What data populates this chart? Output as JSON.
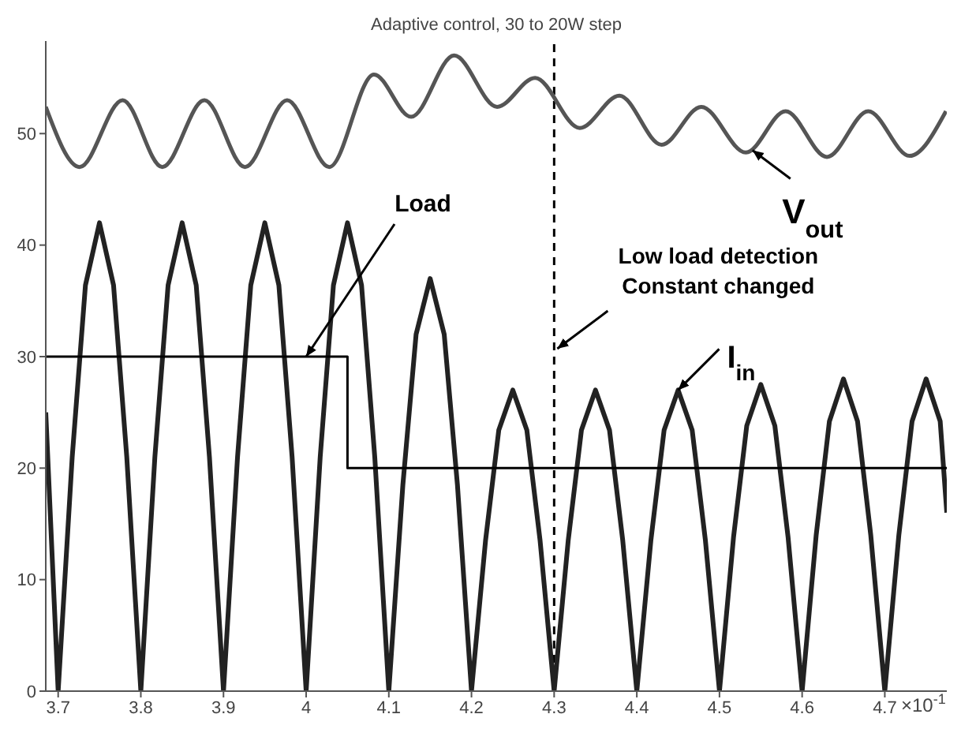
{
  "chart_data": {
    "type": "line",
    "title": "Adaptive control, 30 to 20W step",
    "xlabel": "×10$^{-1}$",
    "xlim": [
      3.685,
      4.775
    ],
    "xticks": [
      3.7,
      3.8,
      3.9,
      4,
      4.1,
      4.2,
      4.3,
      4.4,
      4.5,
      4.6,
      4.7
    ],
    "ylim": [
      0,
      58.3
    ],
    "yticks": [
      0,
      10,
      20,
      30,
      40,
      50
    ],
    "marker": "none",
    "series": [
      {
        "color": "#555555",
        "x": [
          3.685,
          3.726,
          3.778,
          3.826,
          3.877,
          3.926,
          3.977,
          4.028,
          4.082,
          4.127,
          4.179,
          4.231,
          4.277,
          4.331,
          4.379,
          4.43,
          4.478,
          4.532,
          4.58,
          4.63,
          4.68,
          4.73,
          4.774
        ],
        "values": [
          52.4,
          47,
          53,
          47,
          53,
          47,
          53,
          47,
          55.3,
          51.5,
          57,
          52.4,
          55,
          50.5,
          53.4,
          49,
          52.4,
          48.3,
          52,
          47.9,
          52,
          48,
          52
        ]
      },
      {
        "color": "#222222",
        "x": [
          3.685,
          3.7,
          3.717,
          3.733,
          3.75,
          3.767,
          3.783,
          3.8,
          3.817,
          3.833,
          3.85,
          3.867,
          3.883,
          3.9,
          3.917,
          3.933,
          3.95,
          3.967,
          3.983,
          4.0,
          4.017,
          4.033,
          4.05,
          4.067,
          4.083,
          4.1,
          4.117,
          4.133,
          4.15,
          4.167,
          4.183,
          4.2,
          4.217,
          4.233,
          4.25,
          4.267,
          4.283,
          4.3,
          4.317,
          4.333,
          4.35,
          4.367,
          4.383,
          4.4,
          4.417,
          4.433,
          4.45,
          4.467,
          4.483,
          4.5,
          4.517,
          4.533,
          4.55,
          4.567,
          4.583,
          4.6,
          4.617,
          4.633,
          4.65,
          4.667,
          4.683,
          4.7,
          4.717,
          4.733,
          4.75,
          4.767,
          4.775
        ],
        "values": [
          25,
          0,
          21,
          36.4,
          42,
          36.4,
          21,
          0,
          21,
          36.4,
          42,
          36.4,
          21,
          0,
          21,
          36.4,
          42,
          36.4,
          21,
          0,
          21,
          36.4,
          42,
          36.4,
          21,
          0,
          18.5,
          32,
          37,
          32,
          18.5,
          0,
          13.5,
          23.4,
          27,
          23.4,
          13.5,
          0,
          13.5,
          23.4,
          27,
          23.4,
          13.5,
          0,
          13.5,
          23.4,
          27,
          23.4,
          13.5,
          0,
          13.8,
          23.8,
          27.5,
          23.8,
          13.8,
          0,
          14,
          24.2,
          28,
          24.2,
          14,
          0,
          14,
          24.2,
          28,
          24.2,
          16
        ]
      },
      {
        "color": "#000000",
        "x": [
          3.685,
          4.05,
          4.05,
          4.775
        ],
        "values": [
          30,
          30,
          20,
          20
        ]
      }
    ],
    "ref_lines": [
      {
        "axis": "x",
        "value": 4.3,
        "color": "#000000",
        "line_style": "dashed",
        "label": "Low load detection\nConstant changed"
      }
    ],
    "annotations": [
      {
        "text": "Load",
        "x": 4.0,
        "y": 30
      },
      {
        "text": "V$_{out}$",
        "x": 4.54,
        "y": 48.5
      },
      {
        "text": "I$_{in}$",
        "x": 4.45,
        "y": 27
      }
    ]
  }
}
